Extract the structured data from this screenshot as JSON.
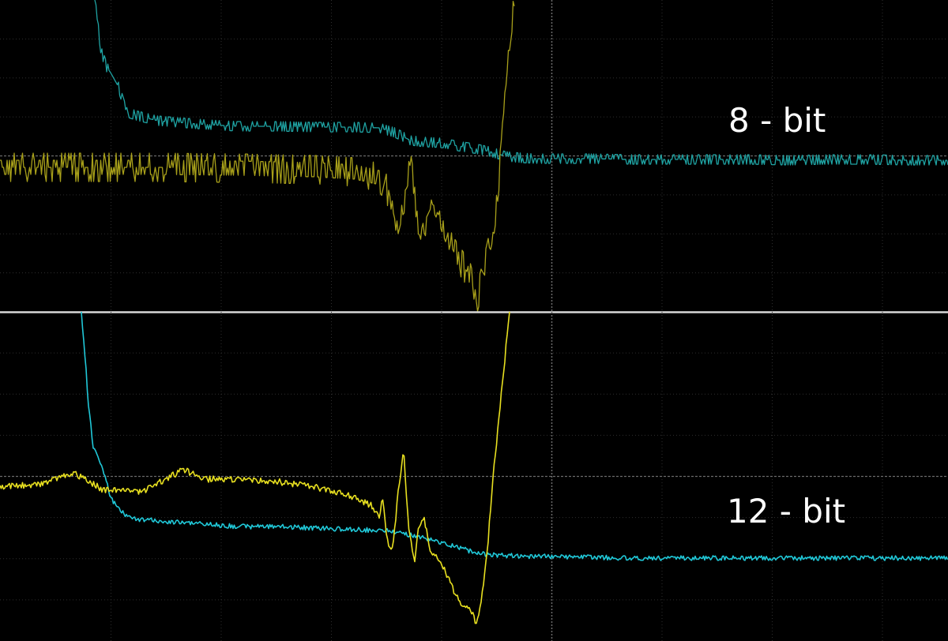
{
  "chart_data": [
    {
      "type": "line",
      "panel": "top",
      "label": "8 - bit",
      "grid": true,
      "xlim": [
        0,
        1200
      ],
      "ylim": [
        0,
        395
      ],
      "series": [
        {
          "color": "#1fa3a3",
          "x": [
            120,
            128,
            135,
            140,
            150,
            160,
            175,
            200,
            250,
            300,
            350,
            400,
            450,
            480,
            500,
            520,
            540,
            560,
            580,
            600,
            620,
            640,
            660,
            680,
            700,
            750,
            800,
            850,
            900,
            950,
            1000,
            1050,
            1100,
            1150,
            1200
          ],
          "y": [
            0,
            65,
            85,
            92,
            110,
            142,
            147,
            153,
            157,
            160,
            160,
            161,
            161,
            162,
            168,
            178,
            180,
            181,
            185,
            188,
            192,
            198,
            200,
            201,
            201,
            201,
            202,
            202,
            202,
            202,
            203,
            202,
            202,
            203,
            203
          ],
          "noise": 8,
          "noise_seed": 11,
          "quantize": 6
        },
        {
          "color": "#a8a01a",
          "x": [
            0,
            100,
            200,
            300,
            400,
            450,
            480,
            490,
            497,
            503,
            510,
            515,
            520,
            525,
            532,
            540,
            548,
            555,
            565,
            575,
            585,
            595,
            603,
            610,
            618,
            625,
            630,
            637,
            645,
            652
          ],
          "y": [
            212,
            212,
            212,
            213,
            215,
            218,
            225,
            240,
            275,
            300,
            272,
            235,
            192,
            255,
            305,
            275,
            258,
            272,
            300,
            320,
            335,
            350,
            382,
            355,
            320,
            290,
            255,
            150,
            55,
            0
          ],
          "noise": 18,
          "noise_seed": 23,
          "quantize": 9
        }
      ]
    },
    {
      "type": "line",
      "panel": "bottom",
      "label": "12 - bit",
      "grid": true,
      "xlim": [
        0,
        1200
      ],
      "ylim": [
        0,
        417
      ],
      "series": [
        {
          "color": "#20c8d8",
          "x": [
            103,
            108,
            112,
            118,
            125,
            132,
            140,
            150,
            160,
            170,
            200,
            250,
            300,
            350,
            400,
            450,
            490,
            520,
            550,
            580,
            600,
            620,
            650,
            700,
            750,
            800,
            900,
            1000,
            1100,
            1200
          ],
          "y": [
            0,
            60,
            120,
            170,
            185,
            205,
            235,
            250,
            258,
            262,
            265,
            268,
            272,
            272,
            274,
            276,
            277,
            283,
            290,
            298,
            305,
            308,
            309,
            310,
            311,
            312,
            312,
            312,
            312,
            312
          ],
          "noise": 3,
          "noise_seed": 7,
          "quantize": 0
        },
        {
          "color": "#e8e020",
          "x": [
            0,
            50,
            95,
            130,
            180,
            232,
            260,
            300,
            350,
            400,
            440,
            470,
            480,
            485,
            490,
            497,
            505,
            511,
            517,
            525,
            530,
            537,
            545,
            555,
            565,
            575,
            585,
            597,
            603,
            610,
            617,
            625,
            632,
            640,
            645
          ],
          "y": [
            222,
            218,
            205,
            225,
            228,
            200,
            212,
            212,
            215,
            222,
            232,
            245,
            258,
            235,
            290,
            300,
            220,
            175,
            270,
            318,
            272,
            262,
            305,
            312,
            332,
            355,
            372,
            380,
            395,
            360,
            300,
            200,
            130,
            50,
            0
          ],
          "noise": 4,
          "noise_seed": 5,
          "quantize": 0
        }
      ]
    }
  ]
}
